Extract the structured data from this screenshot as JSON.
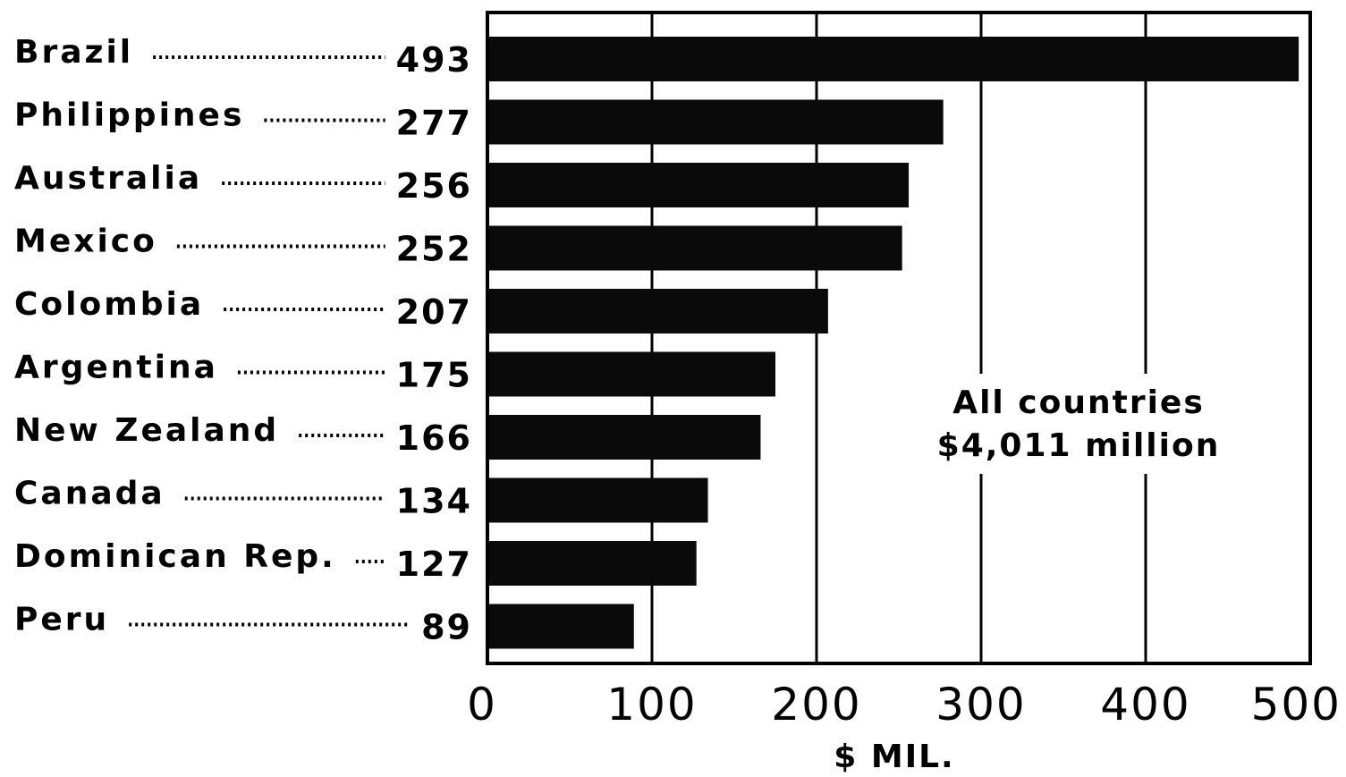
{
  "chart_data": {
    "type": "bar",
    "orientation": "horizontal",
    "categories": [
      "Brazil",
      "Philippines",
      "Australia",
      "Mexico",
      "Colombia",
      "Argentina",
      "New Zealand",
      "Canada",
      "Dominican Rep.",
      "Peru"
    ],
    "values": [
      493,
      277,
      256,
      252,
      207,
      175,
      166,
      134,
      127,
      89
    ],
    "value_labels": [
      "493",
      "277",
      "256",
      "252",
      "207",
      "175",
      "166",
      "134",
      "127",
      "89"
    ],
    "xlabel": "$ MIL.",
    "xlim": [
      0,
      500
    ],
    "x_ticks": [
      "0",
      "100",
      "200",
      "300",
      "400",
      "500"
    ],
    "grid": true,
    "annotation": {
      "line1": "All countries",
      "line2": "$4,011 million"
    },
    "colors": {
      "bar": "#0a0a0a",
      "grid": "#000000",
      "background": "#ffffff"
    }
  }
}
